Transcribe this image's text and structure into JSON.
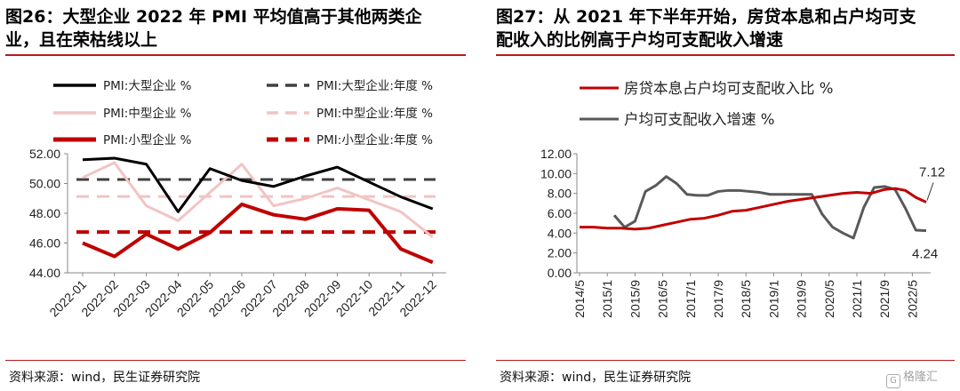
{
  "left": {
    "title_line1": "图26：大型企业 2022 年 PMI 平均值高于其他两类企",
    "title_line2": "业，且在荣枯线以上",
    "source": "资料来源：wind，民生证券研究院"
  },
  "right": {
    "title_line1": "图27：从 2021 年下半年开始，房贷本息和占户均可支",
    "title_line2": "配收入的比例高于户均可支配收入增速",
    "source": "资料来源：wind，民生证券研究院"
  },
  "watermark": "格隆汇",
  "colors": {
    "black": "#000000",
    "dark_gray": "#404040",
    "light_pink": "#f2c4c4",
    "red": "#c00000",
    "title_rule": "#b7191c"
  },
  "chart_data": [
    {
      "type": "line",
      "categories": [
        "2022-01",
        "2022-02",
        "2022-03",
        "2022-04",
        "2022-05",
        "2022-06",
        "2022-07",
        "2022-08",
        "2022-09",
        "2022-10",
        "2022-11",
        "2022-12"
      ],
      "yticks": [
        "44.00",
        "46.00",
        "48.00",
        "50.00",
        "52.00"
      ],
      "ylim": [
        44,
        52
      ],
      "series": [
        {
          "name": "PMI:大型企业 %",
          "style": "solid",
          "color": "#000000",
          "values": [
            51.6,
            51.7,
            51.3,
            48.1,
            51.0,
            50.2,
            49.8,
            50.5,
            51.1,
            50.1,
            49.1,
            48.3
          ]
        },
        {
          "name": "PMI:中型企业 %",
          "style": "solid",
          "color": "#f2c4c4",
          "values": [
            50.4,
            51.4,
            48.5,
            47.5,
            49.4,
            51.3,
            48.5,
            49.0,
            49.7,
            48.9,
            48.1,
            46.4
          ]
        },
        {
          "name": "PMI:小型企业 %",
          "style": "solid",
          "color": "#c00000",
          "values": [
            46.0,
            45.1,
            46.6,
            45.6,
            46.7,
            48.6,
            47.9,
            47.6,
            48.3,
            48.2,
            45.6,
            44.7
          ]
        },
        {
          "name": "PMI:大型企业:年度 %",
          "style": "dashed",
          "color": "#404040",
          "values": [
            50.27,
            50.27,
            50.27,
            50.27,
            50.27,
            50.27,
            50.27,
            50.27,
            50.27,
            50.27,
            50.27,
            50.27
          ]
        },
        {
          "name": "PMI:中型企业:年度 %",
          "style": "dashed",
          "color": "#f2c4c4",
          "values": [
            49.13,
            49.13,
            49.13,
            49.13,
            49.13,
            49.13,
            49.13,
            49.13,
            49.13,
            49.13,
            49.13,
            49.13
          ]
        },
        {
          "name": "PMI:小型企业:年度 %",
          "style": "dashed",
          "color": "#c00000",
          "values": [
            46.74,
            46.74,
            46.74,
            46.74,
            46.74,
            46.74,
            46.74,
            46.74,
            46.74,
            46.74,
            46.74,
            46.74
          ]
        }
      ]
    },
    {
      "type": "line",
      "x_tick_labels": [
        "2014/5",
        "2015/1",
        "2015/9",
        "2016/5",
        "2017/1",
        "2017/9",
        "2018/5",
        "2019/1",
        "2019/9",
        "2020/5",
        "2021/1",
        "2021/9",
        "2022/5"
      ],
      "yticks": [
        "0.00",
        "2.00",
        "4.00",
        "6.00",
        "8.00",
        "10.00",
        "12.00"
      ],
      "ylim": [
        0,
        12
      ],
      "annotations": [
        "7.12",
        "4.24"
      ],
      "series": [
        {
          "name": "房贷本息占户均可支配收入比 %",
          "color": "#c00000",
          "x": [
            "2014/5",
            "2014/9",
            "2015/1",
            "2015/5",
            "2015/9",
            "2016/1",
            "2016/5",
            "2016/9",
            "2017/1",
            "2017/5",
            "2017/9",
            "2018/1",
            "2018/5",
            "2018/9",
            "2019/1",
            "2019/5",
            "2019/9",
            "2020/1",
            "2020/5",
            "2020/9",
            "2021/1",
            "2021/5",
            "2021/9",
            "2021/12",
            "2022/3",
            "2022/6",
            "2022/9"
          ],
          "values": [
            4.6,
            4.6,
            4.5,
            4.5,
            4.4,
            4.5,
            4.8,
            5.1,
            5.4,
            5.5,
            5.8,
            6.2,
            6.3,
            6.6,
            6.9,
            7.2,
            7.4,
            7.6,
            7.8,
            8.0,
            8.1,
            8.0,
            8.4,
            8.5,
            8.3,
            7.6,
            7.12
          ]
        },
        {
          "name": "户均可支配收入增速 %",
          "color": "#595959",
          "x": [
            "2015/3",
            "2015/6",
            "2015/9",
            "2015/12",
            "2016/3",
            "2016/6",
            "2016/9",
            "2016/12",
            "2017/3",
            "2017/6",
            "2017/9",
            "2017/12",
            "2018/3",
            "2018/6",
            "2018/9",
            "2018/12",
            "2019/3",
            "2019/6",
            "2019/9",
            "2019/12",
            "2020/3",
            "2020/6",
            "2020/9",
            "2020/12",
            "2021/3",
            "2021/6",
            "2021/9",
            "2021/12",
            "2022/3",
            "2022/6",
            "2022/9"
          ],
          "values": [
            5.8,
            4.6,
            5.2,
            8.2,
            8.8,
            9.7,
            9.0,
            7.9,
            7.8,
            7.8,
            8.2,
            8.3,
            8.3,
            8.2,
            8.1,
            7.9,
            7.9,
            7.9,
            7.9,
            7.9,
            5.9,
            4.6,
            4.0,
            3.5,
            6.6,
            8.6,
            8.7,
            8.4,
            6.5,
            4.3,
            4.24
          ]
        }
      ]
    }
  ]
}
